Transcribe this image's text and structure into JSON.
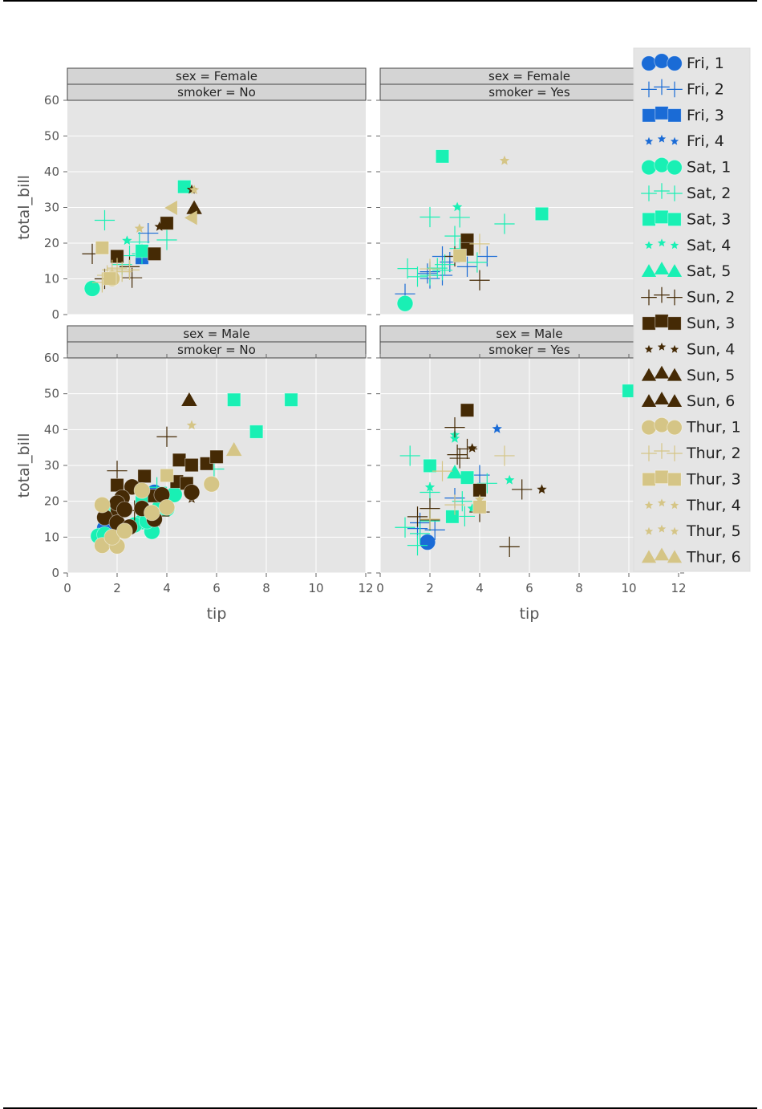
{
  "page": {
    "has_top_rule": true,
    "has_bottom_rule": true
  },
  "chart_data": {
    "type": "scatter",
    "title": "",
    "xlabel": "tip",
    "ylabel": "total_bill",
    "xlim": [
      0,
      12
    ],
    "ylim": [
      0,
      60
    ],
    "xticks": [
      0,
      2,
      4,
      6,
      8,
      10,
      12
    ],
    "yticks": [
      0,
      10,
      20,
      30,
      40,
      50,
      60
    ],
    "grid": true,
    "legend_position": "right",
    "facet_rows": "sex",
    "facet_cols": "smoker",
    "panels": [
      {
        "id": "female-no",
        "row_label": "sex = Female",
        "col_label": "smoker = No",
        "row": 0,
        "col": 0
      },
      {
        "id": "female-yes",
        "row_label": "sex = Female",
        "col_label": "smoker = Yes",
        "row": 0,
        "col": 1
      },
      {
        "id": "male-no",
        "row_label": "sex = Male",
        "col_label": "smoker = No",
        "row": 1,
        "col": 0
      },
      {
        "id": "male-yes",
        "row_label": "sex = Male",
        "col_label": "smoker = Yes",
        "row": 1,
        "col": 1
      }
    ],
    "legend": [
      {
        "label": "Fri, 1",
        "color": "#1a6bd6",
        "marker": "circle"
      },
      {
        "label": "Fri, 2",
        "color": "#1a6bd6",
        "marker": "plus"
      },
      {
        "label": "Fri, 3",
        "color": "#1a6bd6",
        "marker": "square"
      },
      {
        "label": "Fri, 4",
        "color": "#1a6bd6",
        "marker": "star"
      },
      {
        "label": "Sat, 1",
        "color": "#19f0b4",
        "marker": "circle"
      },
      {
        "label": "Sat, 2",
        "color": "#19f0b4",
        "marker": "plus"
      },
      {
        "label": "Sat, 3",
        "color": "#19f0b4",
        "marker": "square"
      },
      {
        "label": "Sat, 4",
        "color": "#19f0b4",
        "marker": "star"
      },
      {
        "label": "Sat, 5",
        "color": "#19f0b4",
        "marker": "triangle"
      },
      {
        "label": "Sun, 2",
        "color": "#452a05",
        "marker": "plus"
      },
      {
        "label": "Sun, 3",
        "color": "#452a05",
        "marker": "square"
      },
      {
        "label": "Sun, 4",
        "color": "#452a05",
        "marker": "star"
      },
      {
        "label": "Sun, 5",
        "color": "#452a05",
        "marker": "triangle"
      },
      {
        "label": "Sun, 6",
        "color": "#452a05",
        "marker": "triangle"
      },
      {
        "label": "Thur, 1",
        "color": "#d5c586",
        "marker": "circle"
      },
      {
        "label": "Thur, 2",
        "color": "#d5c586",
        "marker": "plus"
      },
      {
        "label": "Thur, 3",
        "color": "#d5c586",
        "marker": "square"
      },
      {
        "label": "Thur, 4",
        "color": "#d5c586",
        "marker": "star"
      },
      {
        "label": "Thur, 5",
        "color": "#d5c586",
        "marker": "star"
      },
      {
        "label": "Thur, 6",
        "color": "#d5c586",
        "marker": "triangle"
      }
    ],
    "series": [
      {
        "panel": "female-no",
        "name": "Fri, 2",
        "points": [
          [
            3.25,
            22.8
          ]
        ]
      },
      {
        "panel": "female-no",
        "name": "Fri, 3",
        "points": [
          [
            3.0,
            15.9
          ]
        ]
      },
      {
        "panel": "female-no",
        "name": "Sat, 1",
        "points": [
          [
            1.0,
            7.3
          ]
        ]
      },
      {
        "panel": "female-no",
        "name": "Sat, 2",
        "points": [
          [
            1.5,
            26.4
          ],
          [
            2.5,
            16.5
          ],
          [
            2.9,
            20.3
          ],
          [
            4.0,
            20.9
          ],
          [
            2.2,
            14.0
          ],
          [
            3.0,
            17.0
          ]
        ]
      },
      {
        "panel": "female-no",
        "name": "Sat, 3",
        "points": [
          [
            4.7,
            35.8
          ],
          [
            3.0,
            17.8
          ]
        ]
      },
      {
        "panel": "female-no",
        "name": "Sat, 4",
        "points": [
          [
            2.4,
            20.7
          ]
        ]
      },
      {
        "panel": "female-no",
        "name": "Sun, 2",
        "points": [
          [
            1.0,
            17.0
          ],
          [
            2.5,
            13.4
          ],
          [
            2.6,
            10.3
          ],
          [
            1.5,
            10.0
          ]
        ]
      },
      {
        "panel": "female-no",
        "name": "Sun, 3",
        "points": [
          [
            2.0,
            16.3
          ],
          [
            3.5,
            17.0
          ],
          [
            4.0,
            25.6
          ]
        ]
      },
      {
        "panel": "female-no",
        "name": "Sun, 4",
        "points": [
          [
            3.7,
            24.6
          ],
          [
            3.9,
            25.0
          ],
          [
            5.0,
            35.0
          ]
        ]
      },
      {
        "panel": "female-no",
        "name": "Sun, 5",
        "points": [
          [
            5.1,
            29.8
          ]
        ]
      },
      {
        "panel": "female-no",
        "name": "Thur, 1",
        "points": [
          [
            1.8,
            10.1
          ]
        ]
      },
      {
        "panel": "female-no",
        "name": "Thur, 2",
        "points": [
          [
            1.6,
            11.0
          ],
          [
            1.8,
            12.5
          ],
          [
            2.0,
            13.0
          ],
          [
            1.4,
            9.0
          ],
          [
            2.2,
            12.0
          ],
          [
            2.5,
            12.5
          ]
        ]
      },
      {
        "panel": "female-no",
        "name": "Thur, 3",
        "points": [
          [
            1.4,
            18.7
          ],
          [
            1.7,
            10.1
          ]
        ]
      },
      {
        "panel": "female-no",
        "name": "Thur, 4",
        "points": [
          [
            2.9,
            24.1
          ],
          [
            5.1,
            34.9
          ]
        ]
      },
      {
        "panel": "female-no",
        "name": "Thur, 6",
        "points": [
          [
            4.2,
            29.9
          ],
          [
            5.0,
            27.1
          ]
        ]
      },
      {
        "panel": "female-yes",
        "name": "Fri, 2",
        "points": [
          [
            1.0,
            5.8
          ],
          [
            2.0,
            10.1
          ],
          [
            2.5,
            11.0
          ],
          [
            2.0,
            12.0
          ],
          [
            3.5,
            13.4
          ],
          [
            2.5,
            16.3
          ],
          [
            4.3,
            16.3
          ],
          [
            1.9,
            11.5
          ],
          [
            2.8,
            14.7
          ]
        ]
      },
      {
        "panel": "female-yes",
        "name": "Sat, 1",
        "points": [
          [
            1.0,
            3.1
          ]
        ]
      },
      {
        "panel": "female-yes",
        "name": "Sat, 2",
        "points": [
          [
            1.1,
            12.9
          ],
          [
            2.0,
            27.3
          ],
          [
            3.0,
            22.0
          ],
          [
            3.2,
            27.2
          ],
          [
            5.0,
            25.4
          ],
          [
            1.5,
            10.6
          ],
          [
            2.0,
            11.0
          ],
          [
            2.6,
            14.0
          ],
          [
            3.9,
            14.6
          ],
          [
            2.3,
            13.0
          ],
          [
            2.5,
            12.4
          ],
          [
            3.2,
            18.5
          ]
        ]
      },
      {
        "panel": "female-yes",
        "name": "Sat, 3",
        "points": [
          [
            2.5,
            44.3
          ],
          [
            6.5,
            28.2
          ]
        ]
      },
      {
        "panel": "female-yes",
        "name": "Sat, 4",
        "points": [
          [
            3.1,
            30.1
          ]
        ]
      },
      {
        "panel": "female-yes",
        "name": "Sun, 2",
        "points": [
          [
            4.0,
            9.6
          ],
          [
            3.0,
            16.3
          ]
        ]
      },
      {
        "panel": "female-yes",
        "name": "Sun, 3",
        "points": [
          [
            3.5,
            20.9
          ],
          [
            3.5,
            18.3
          ]
        ]
      },
      {
        "panel": "female-yes",
        "name": "Thur, 2",
        "points": [
          [
            2.0,
            12.8
          ],
          [
            4.0,
            19.8
          ]
        ]
      },
      {
        "panel": "female-yes",
        "name": "Thur, 3",
        "points": [
          [
            3.2,
            16.5
          ]
        ]
      },
      {
        "panel": "female-yes",
        "name": "Thur, 5",
        "points": [
          [
            5.0,
            43.1
          ]
        ]
      },
      {
        "panel": "male-no",
        "name": "Fri, 1",
        "points": [
          [
            1.5,
            12.5
          ],
          [
            3.5,
            22.5
          ]
        ]
      },
      {
        "panel": "male-no",
        "name": "Sat, 1",
        "points": [
          [
            1.25,
            10.3
          ],
          [
            1.5,
            10.7
          ],
          [
            1.7,
            18.0
          ],
          [
            3.0,
            14.3
          ],
          [
            2.7,
            13.4
          ],
          [
            3.4,
            11.6
          ],
          [
            3.7,
            18.2
          ],
          [
            4.3,
            21.9
          ],
          [
            2.0,
            16.9
          ],
          [
            4.0,
            17.9
          ],
          [
            3.2,
            14.5
          ]
        ]
      },
      {
        "panel": "male-no",
        "name": "Sat, 2",
        "points": [
          [
            5.9,
            29.0
          ],
          [
            3.6,
            23.9
          ]
        ]
      },
      {
        "panel": "male-no",
        "name": "Sat, 3",
        "points": [
          [
            6.7,
            48.3
          ],
          [
            9.0,
            48.3
          ],
          [
            7.6,
            39.4
          ],
          [
            3.0,
            20.1
          ]
        ]
      },
      {
        "panel": "male-no",
        "name": "Sun, 2",
        "points": [
          [
            2.0,
            28.5
          ],
          [
            4.0,
            38.0
          ],
          [
            3.7,
            15.9
          ],
          [
            2.7,
            17.4
          ]
        ]
      },
      {
        "panel": "male-no",
        "name": "Sun, 3",
        "points": [
          [
            2.0,
            24.5
          ],
          [
            3.1,
            27.0
          ],
          [
            4.5,
            31.5
          ],
          [
            5.0,
            30.1
          ],
          [
            5.6,
            30.5
          ],
          [
            6.0,
            32.4
          ],
          [
            4.4,
            25.5
          ],
          [
            4.8,
            25.0
          ],
          [
            3.5,
            21.5
          ],
          [
            2.0,
            17.5
          ]
        ]
      },
      {
        "panel": "male-no",
        "name": "Sun, 4",
        "points": [
          [
            5.0,
            20.7
          ]
        ]
      },
      {
        "panel": "male-no",
        "name": "Sun, 6",
        "points": [
          [
            4.9,
            48.2
          ]
        ]
      },
      {
        "panel": "male-no",
        "name": "Sun, 1",
        "points": [
          [
            2.6,
            24.0
          ],
          [
            2.2,
            21.0
          ],
          [
            1.5,
            15.5
          ],
          [
            2.0,
            14.0
          ],
          [
            2.5,
            12.8
          ],
          [
            2.0,
            19.5
          ],
          [
            3.0,
            18.0
          ],
          [
            3.8,
            21.8
          ],
          [
            5.0,
            22.5
          ],
          [
            3.5,
            15.0
          ],
          [
            2.3,
            17.7
          ]
        ]
      },
      {
        "panel": "male-no",
        "name": "Thur, 1",
        "points": [
          [
            1.4,
            19.0
          ],
          [
            1.4,
            7.7
          ],
          [
            2.0,
            7.5
          ],
          [
            3.0,
            23.0
          ],
          [
            3.4,
            16.8
          ],
          [
            5.8,
            24.8
          ],
          [
            4.0,
            18.3
          ],
          [
            1.8,
            10.0
          ],
          [
            2.3,
            11.7
          ]
        ]
      },
      {
        "panel": "male-no",
        "name": "Thur, 3",
        "points": [
          [
            4.0,
            27.2
          ]
        ]
      },
      {
        "panel": "male-no",
        "name": "Thur, 4",
        "points": [
          [
            5.0,
            41.2
          ]
        ]
      },
      {
        "panel": "male-no",
        "name": "Thur, 6",
        "points": [
          [
            6.7,
            34.3
          ]
        ]
      },
      {
        "panel": "male-yes",
        "name": "Fri, 1",
        "points": [
          [
            1.9,
            8.6
          ]
        ]
      },
      {
        "panel": "male-yes",
        "name": "Fri, 2",
        "points": [
          [
            4.0,
            27.3
          ],
          [
            3.0,
            20.9
          ],
          [
            1.5,
            12.4
          ],
          [
            2.2,
            12.0
          ],
          [
            1.6,
            14.0
          ]
        ]
      },
      {
        "panel": "male-yes",
        "name": "Fri, 4",
        "points": [
          [
            4.7,
            40.2
          ]
        ]
      },
      {
        "panel": "male-yes",
        "name": "Sat, 2",
        "points": [
          [
            1.2,
            32.7
          ],
          [
            1.0,
            12.7
          ],
          [
            1.5,
            7.7
          ],
          [
            2.0,
            22.5
          ],
          [
            3.3,
            20.0
          ],
          [
            4.3,
            25.0
          ],
          [
            3.4,
            15.8
          ],
          [
            1.6,
            11.0
          ],
          [
            2.0,
            14.5
          ]
        ]
      },
      {
        "panel": "male-yes",
        "name": "Sat, 3",
        "points": [
          [
            2.0,
            29.9
          ],
          [
            3.5,
            26.6
          ],
          [
            2.9,
            15.7
          ],
          [
            10.0,
            50.8
          ]
        ]
      },
      {
        "panel": "male-yes",
        "name": "Sat, 4",
        "points": [
          [
            3.0,
            38.5
          ],
          [
            3.0,
            37.5
          ],
          [
            2.0,
            23.9
          ],
          [
            5.2,
            25.9
          ],
          [
            3.7,
            18.0
          ]
        ]
      },
      {
        "panel": "male-yes",
        "name": "Sat, 5",
        "points": [
          [
            3.0,
            28.0
          ]
        ]
      },
      {
        "panel": "male-yes",
        "name": "Sun, 2",
        "points": [
          [
            3.0,
            40.6
          ],
          [
            3.1,
            33.0
          ],
          [
            3.2,
            32.0
          ],
          [
            3.5,
            34.6
          ],
          [
            5.7,
            23.3
          ],
          [
            5.2,
            7.3
          ],
          [
            1.5,
            15.7
          ],
          [
            2.0,
            18.0
          ],
          [
            2.0,
            14.8
          ],
          [
            4.0,
            17.0
          ]
        ]
      },
      {
        "panel": "male-yes",
        "name": "Sun, 3",
        "points": [
          [
            3.5,
            45.4
          ],
          [
            4.0,
            23.1
          ]
        ]
      },
      {
        "panel": "male-yes",
        "name": "Sun, 4",
        "points": [
          [
            3.7,
            34.8
          ],
          [
            6.5,
            23.3
          ]
        ]
      },
      {
        "panel": "male-yes",
        "name": "Thur, 2",
        "points": [
          [
            5.0,
            32.7
          ],
          [
            2.5,
            28.4
          ],
          [
            2.0,
            15.0
          ],
          [
            3.0,
            19.0
          ]
        ]
      },
      {
        "panel": "male-yes",
        "name": "Thur, 3",
        "points": [
          [
            4.0,
            18.4
          ]
        ]
      },
      {
        "panel": "male-yes",
        "name": "Thur, 4",
        "points": [
          [
            4.0,
            20.5
          ]
        ]
      }
    ]
  }
}
